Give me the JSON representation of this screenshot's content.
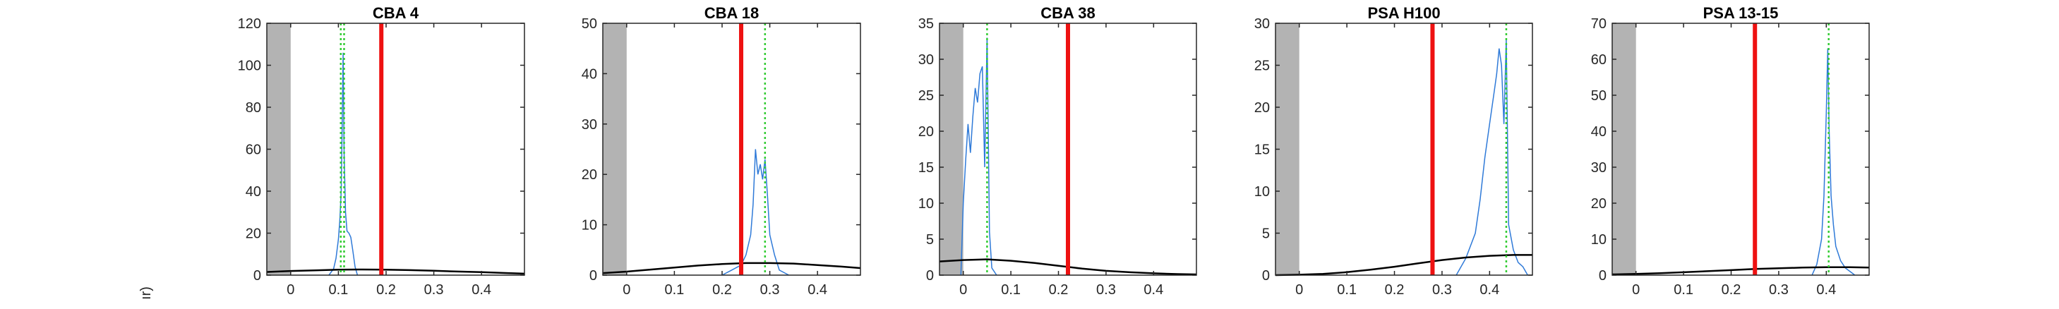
{
  "figure": {
    "ylabel_fragment": "ır)"
  },
  "colors": {
    "histogram": "#2f7ad8",
    "threshold_line": "#ee1111",
    "dotted_marker": "#33cc33",
    "gaussian": "#000000",
    "excluded_region": "#b3b3b3",
    "axes": "#262626"
  },
  "chart_data": [
    {
      "type": "line",
      "title": "CBA 4",
      "xlim": [
        -0.05,
        0.49
      ],
      "ylim": [
        0,
        120
      ],
      "xticks": [
        "0",
        "0.1",
        "0.2",
        "0.3",
        "0.4"
      ],
      "xtick_values": [
        0,
        0.1,
        0.2,
        0.3,
        0.4
      ],
      "yticks": [
        "0",
        "20",
        "40",
        "60",
        "80",
        "100",
        "120"
      ],
      "ytick_values": [
        0,
        20,
        40,
        60,
        80,
        100,
        120
      ],
      "shaded_region": [
        -0.05,
        0.0
      ],
      "threshold_x": 0.19,
      "dotted_markers_x": [
        0.105,
        0.112
      ],
      "histogram": {
        "x": [
          0.08,
          0.09,
          0.095,
          0.1,
          0.103,
          0.106,
          0.108,
          0.11,
          0.112,
          0.115,
          0.118,
          0.122,
          0.126,
          0.13,
          0.135,
          0.14
        ],
        "y": [
          0,
          3,
          8,
          17,
          26,
          40,
          72,
          106,
          58,
          30,
          21,
          20,
          18,
          12,
          4,
          0
        ]
      },
      "gaussian": {
        "x": [
          -0.05,
          0.0,
          0.05,
          0.1,
          0.15,
          0.2,
          0.25,
          0.3,
          0.35,
          0.4,
          0.45,
          0.49
        ],
        "y": [
          1.5,
          2.0,
          2.3,
          2.6,
          2.7,
          2.6,
          2.4,
          2.1,
          1.7,
          1.4,
          1.0,
          0.7
        ]
      }
    },
    {
      "type": "line",
      "title": "CBA 18",
      "xlim": [
        -0.05,
        0.49
      ],
      "ylim": [
        0,
        50
      ],
      "xticks": [
        "0",
        "0.1",
        "0.2",
        "0.3",
        "0.4"
      ],
      "xtick_values": [
        0,
        0.1,
        0.2,
        0.3,
        0.4
      ],
      "yticks": [
        "0",
        "10",
        "20",
        "30",
        "40",
        "50"
      ],
      "ytick_values": [
        0,
        10,
        20,
        30,
        40,
        50
      ],
      "shaded_region": [
        -0.05,
        0.0
      ],
      "threshold_x": 0.24,
      "dotted_markers_x": [
        0.29
      ],
      "histogram": {
        "x": [
          0.2,
          0.22,
          0.24,
          0.25,
          0.26,
          0.265,
          0.27,
          0.275,
          0.28,
          0.285,
          0.29,
          0.295,
          0.3,
          0.31,
          0.32,
          0.34
        ],
        "y": [
          0,
          1,
          2,
          4,
          8,
          14,
          25,
          20,
          22,
          19,
          23,
          16,
          8,
          4,
          1,
          0
        ]
      },
      "gaussian": {
        "x": [
          -0.05,
          0.0,
          0.05,
          0.1,
          0.15,
          0.2,
          0.25,
          0.3,
          0.35,
          0.4,
          0.45,
          0.49
        ],
        "y": [
          0.4,
          0.7,
          1.1,
          1.5,
          1.9,
          2.2,
          2.4,
          2.4,
          2.3,
          2.0,
          1.7,
          1.4
        ]
      }
    },
    {
      "type": "line",
      "title": "CBA 38",
      "xlim": [
        -0.05,
        0.49
      ],
      "ylim": [
        0,
        35
      ],
      "xticks": [
        "0",
        "0.1",
        "0.2",
        "0.3",
        "0.4"
      ],
      "xtick_values": [
        0,
        0.1,
        0.2,
        0.3,
        0.4
      ],
      "yticks": [
        "0",
        "5",
        "10",
        "15",
        "20",
        "25",
        "30",
        "35"
      ],
      "ytick_values": [
        0,
        5,
        10,
        15,
        20,
        25,
        30,
        35
      ],
      "shaded_region": [
        -0.05,
        0.0
      ],
      "threshold_x": 0.22,
      "dotted_markers_x": [
        0.05
      ],
      "histogram": {
        "x": [
          -0.005,
          0.0,
          0.005,
          0.01,
          0.015,
          0.02,
          0.025,
          0.03,
          0.035,
          0.04,
          0.045,
          0.05,
          0.055,
          0.06,
          0.07
        ],
        "y": [
          0,
          10,
          16,
          21,
          17,
          22,
          26,
          24,
          28,
          29,
          15,
          33,
          6,
          1,
          0
        ]
      },
      "gaussian": {
        "x": [
          -0.05,
          0.0,
          0.05,
          0.1,
          0.15,
          0.2,
          0.25,
          0.3,
          0.35,
          0.4,
          0.45,
          0.49
        ],
        "y": [
          1.9,
          2.1,
          2.2,
          2.0,
          1.7,
          1.3,
          0.9,
          0.6,
          0.4,
          0.25,
          0.15,
          0.1
        ]
      }
    },
    {
      "type": "line",
      "title": "PSA H100",
      "xlim": [
        -0.05,
        0.49
      ],
      "ylim": [
        0,
        30
      ],
      "xticks": [
        "0",
        "0.1",
        "0.2",
        "0.3",
        "0.4"
      ],
      "xtick_values": [
        0,
        0.1,
        0.2,
        0.3,
        0.4
      ],
      "yticks": [
        "0",
        "5",
        "10",
        "15",
        "20",
        "25",
        "30"
      ],
      "ytick_values": [
        0,
        5,
        10,
        15,
        20,
        25,
        30
      ],
      "shaded_region": [
        -0.05,
        0.0
      ],
      "threshold_x": 0.28,
      "dotted_markers_x": [
        0.435
      ],
      "histogram": {
        "x": [
          0.33,
          0.35,
          0.37,
          0.38,
          0.39,
          0.4,
          0.41,
          0.415,
          0.42,
          0.425,
          0.43,
          0.435,
          0.44,
          0.45,
          0.46,
          0.47,
          0.48
        ],
        "y": [
          0,
          2,
          5,
          9,
          14,
          18,
          22,
          24,
          27,
          25,
          18,
          28,
          6,
          3,
          1.5,
          1,
          0
        ]
      },
      "gaussian": {
        "x": [
          -0.05,
          0.0,
          0.05,
          0.1,
          0.15,
          0.2,
          0.25,
          0.3,
          0.35,
          0.4,
          0.45,
          0.49
        ],
        "y": [
          0.0,
          0.05,
          0.15,
          0.35,
          0.65,
          1.0,
          1.4,
          1.8,
          2.1,
          2.3,
          2.4,
          2.4
        ]
      }
    },
    {
      "type": "line",
      "title": "PSA 13-15",
      "xlim": [
        -0.05,
        0.49
      ],
      "ylim": [
        0,
        70
      ],
      "xticks": [
        "0",
        "0.1",
        "0.2",
        "0.3",
        "0.4"
      ],
      "xtick_values": [
        0,
        0.1,
        0.2,
        0.3,
        0.4
      ],
      "yticks": [
        "0",
        "10",
        "20",
        "30",
        "40",
        "50",
        "60",
        "70"
      ],
      "ytick_values": [
        0,
        10,
        20,
        30,
        40,
        50,
        60,
        70
      ],
      "shaded_region": [
        -0.05,
        0.0
      ],
      "threshold_x": 0.25,
      "dotted_markers_x": [
        0.405
      ],
      "histogram": {
        "x": [
          0.37,
          0.38,
          0.39,
          0.395,
          0.4,
          0.403,
          0.406,
          0.41,
          0.415,
          0.42,
          0.43,
          0.44,
          0.46
        ],
        "y": [
          0,
          3,
          10,
          22,
          45,
          63,
          40,
          22,
          14,
          8,
          4,
          2,
          0
        ]
      },
      "gaussian": {
        "x": [
          -0.05,
          0.0,
          0.05,
          0.1,
          0.15,
          0.2,
          0.25,
          0.3,
          0.35,
          0.4,
          0.45,
          0.49
        ],
        "y": [
          0.2,
          0.35,
          0.55,
          0.8,
          1.1,
          1.4,
          1.7,
          1.9,
          2.1,
          2.2,
          2.2,
          2.1
        ]
      }
    }
  ]
}
